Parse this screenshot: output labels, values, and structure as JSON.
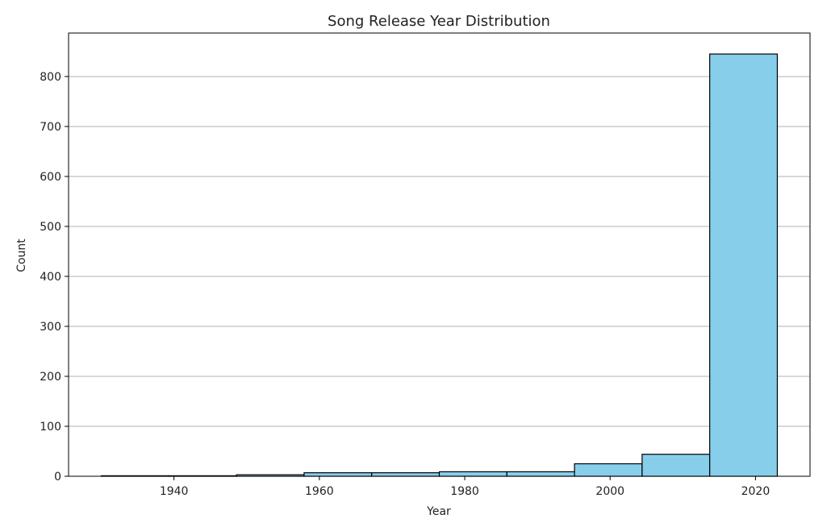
{
  "chart_data": {
    "type": "bar",
    "title": "Song Release Year Distribution",
    "xlabel": "Year",
    "ylabel": "Count",
    "bins": [
      {
        "start": 1930.0,
        "end": 1939.3,
        "count": 1
      },
      {
        "start": 1939.3,
        "end": 1948.6,
        "count": 1
      },
      {
        "start": 1948.6,
        "end": 1957.9,
        "count": 3
      },
      {
        "start": 1957.9,
        "end": 1967.2,
        "count": 7
      },
      {
        "start": 1967.2,
        "end": 1976.5,
        "count": 7
      },
      {
        "start": 1976.5,
        "end": 1985.8,
        "count": 9
      },
      {
        "start": 1985.8,
        "end": 1995.1,
        "count": 9
      },
      {
        "start": 1995.1,
        "end": 2004.4,
        "count": 25
      },
      {
        "start": 2004.4,
        "end": 2013.7,
        "count": 44
      },
      {
        "start": 2013.7,
        "end": 2023.0,
        "count": 845
      }
    ],
    "xlim": [
      1925.5,
      2027.5
    ],
    "ylim": [
      0,
      887
    ],
    "xticks": [
      1940,
      1960,
      1980,
      2000,
      2020
    ],
    "yticks": [
      0,
      100,
      200,
      300,
      400,
      500,
      600,
      700,
      800
    ],
    "grid": "horizontal",
    "colors": {
      "bar_fill": "#87CEEB",
      "bar_edge": "#000000",
      "grid": "#b0b0b0"
    }
  }
}
